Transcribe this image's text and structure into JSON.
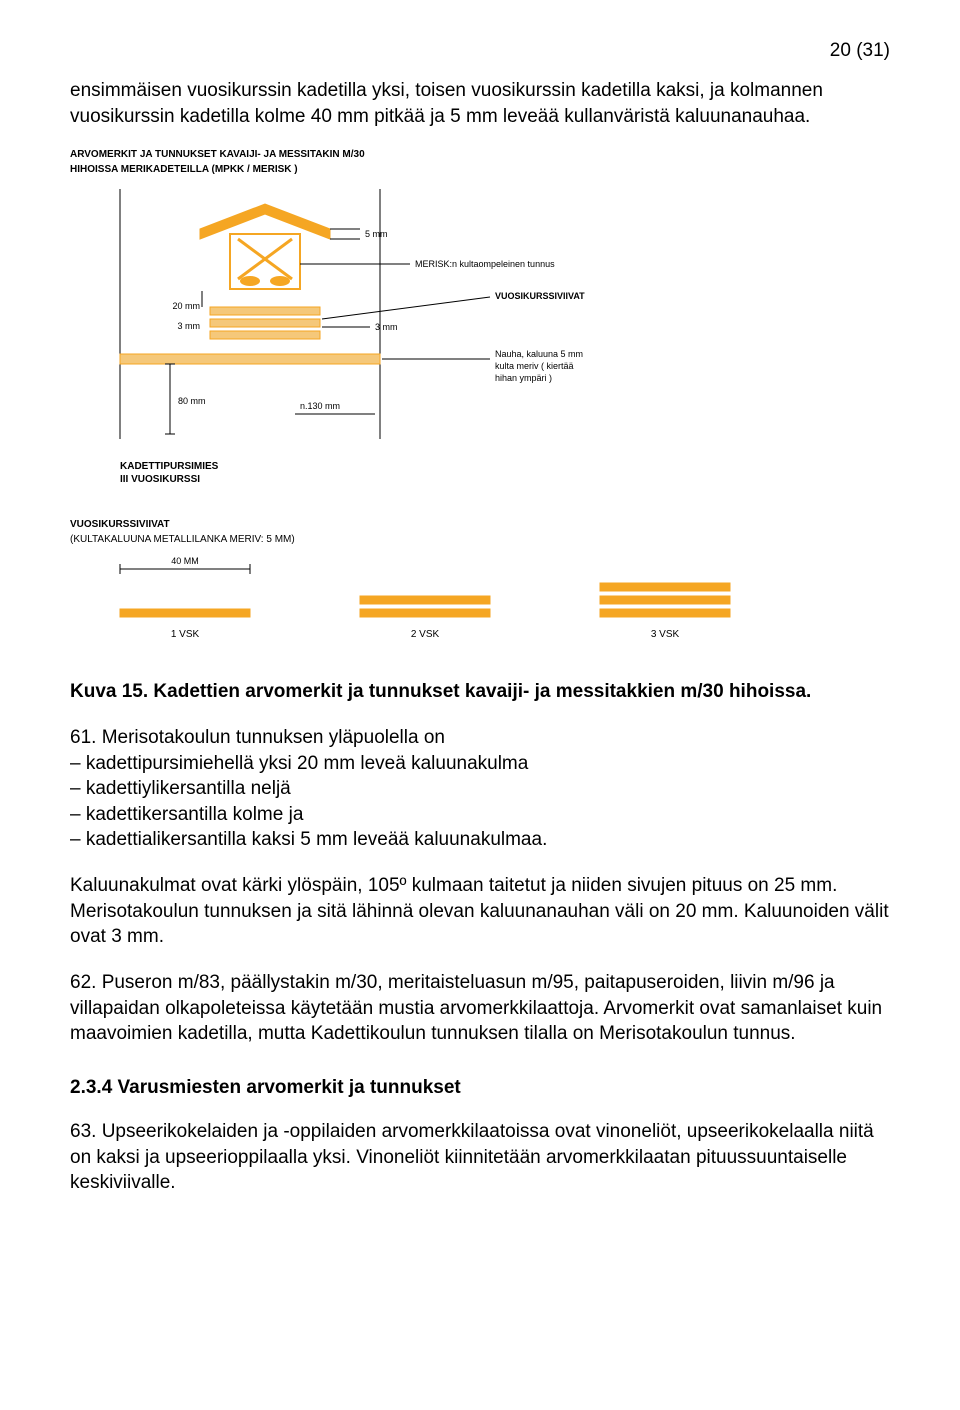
{
  "page_number": "20 (31)",
  "para_intro": "ensimmäisen vuosikurssin kadetilla yksi, toisen vuosikurssin kadetilla kaksi, ja kolmannen vuosikurssin kadetilla kolme 40 mm pitkää ja 5 mm leveää kullanväristä kaluunanauhaa.",
  "fig1": {
    "header_line1": "ARVOMERKIT JA TUNNUKSET KAVAIJI- JA MESSITAKIN M/30",
    "header_line2": "HIHOISSA MERIKADETEILLA (MPKK / MERISK )",
    "labels": {
      "dim_5mm": "5 mm",
      "merisk": "MERISK:n kultaompeleinen tunnus",
      "dim_20mm": "20 mm",
      "dim_3mm": "3 mm",
      "dim_3mm_r": "3 mm",
      "vuosi": "VUOSIKURSSIVIIVAT",
      "nauha1": "Nauha, kaluuna 5 mm",
      "nauha2": "kulta meriv ( kiertää",
      "nauha3": "hihan ympäri )",
      "dim_80mm": "80 mm",
      "dim_130mm": "n.130 mm",
      "kadetti1": "KADETTIPURSIMIES",
      "kadetti2": "III VUOSIKURSSI"
    },
    "colors": {
      "gold": "#f5a623",
      "gold_hatch": "#f5c87a",
      "line": "#000000",
      "box_fill": "#ffffff"
    }
  },
  "fig2": {
    "header_line1": "VUOSIKURSSIVIIVAT",
    "header_line2": "(KULTAKALUUNA METALLILANKA MERIV: 5 MM)",
    "dim_40mm": "40 MM",
    "labels": {
      "v1": "1 VSK",
      "v2": "2 VSK",
      "v3": "3 VSK"
    },
    "colors": {
      "gold": "#f5a623",
      "line": "#000000"
    }
  },
  "caption": "Kuva 15. Kadettien arvomerkit ja tunnukset kavaiji- ja messitakkien m/30 hihoissa.",
  "para61a": "61. Merisotakoulun tunnuksen yläpuolella on",
  "para61b": "– kadettipursimiehellä yksi 20 mm leveä kaluunakulma",
  "para61c": "– kadettiylikersantilla neljä",
  "para61d": "– kadettikersantilla kolme ja",
  "para61e": "– kadettialikersantilla kaksi 5 mm leveää kaluunakulmaa.",
  "para61f": "Kaluunakulmat ovat kärki ylöspäin, 105º kulmaan taitetut ja niiden sivujen pituus on 25 mm. Merisotakoulun tunnuksen ja sitä lähinnä olevan kaluunanauhan väli on 20 mm. Kaluunoiden välit ovat 3 mm.",
  "para62": "62. Puseron m/83, päällystakin m/30, meritaisteluasun m/95, paitapuseroiden, liivin m/96 ja villapaidan olkapoleteissa käytetään mustia arvomerkkilaattoja. Arvomerkit ovat samanlaiset kuin maavoimien kadetilla, mutta Kadettikoulun tunnuksen tilalla on Merisotakoulun tunnus.",
  "section234": "2.3.4 Varusmiesten arvomerkit ja tunnukset",
  "para63": "63. Upseerikokelaiden ja -oppilaiden arvomerkkilaatoissa ovat vinoneliöt, upseerikokelaalla niitä on kaksi ja upseerioppilaalla yksi. Vinoneliöt kiinnitetään arvomerkkilaatan pituussuuntaiselle keskiviivalle."
}
